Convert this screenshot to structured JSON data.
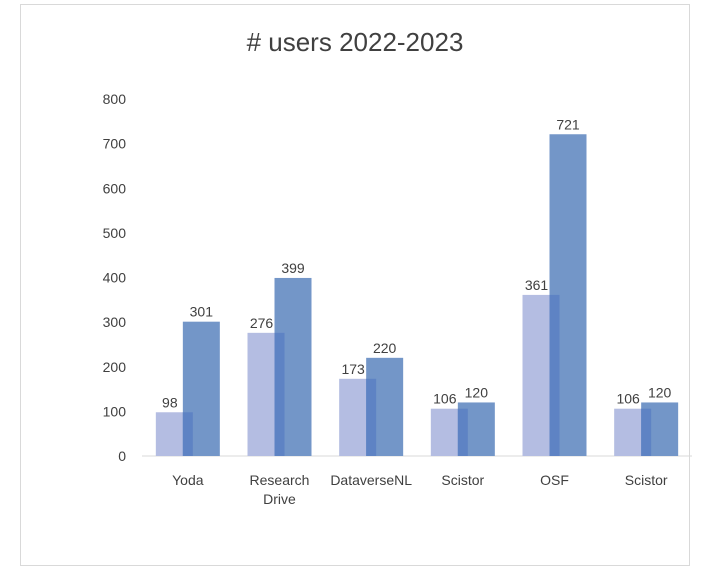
{
  "chart_data": {
    "type": "bar",
    "title": "# users 2022-2023",
    "xlabel": "",
    "ylabel": "",
    "categories": [
      [
        "Yoda"
      ],
      [
        "Research",
        "Drive"
      ],
      [
        "DataverseNL"
      ],
      [
        "Scistor"
      ],
      [
        "OSF"
      ],
      [
        "Scistor"
      ]
    ],
    "series": [
      {
        "values": [
          98,
          276,
          173,
          106,
          361,
          106
        ],
        "color": "#b4bde2"
      },
      {
        "values": [
          301,
          399,
          220,
          120,
          721,
          120
        ],
        "color": "#7396c8"
      }
    ],
    "overlap_color": "#5e83c4",
    "ylim": [
      0,
      800
    ],
    "yticks": [
      0,
      100,
      200,
      300,
      400,
      500,
      600,
      700,
      800
    ],
    "grid": false,
    "legend": "none"
  }
}
